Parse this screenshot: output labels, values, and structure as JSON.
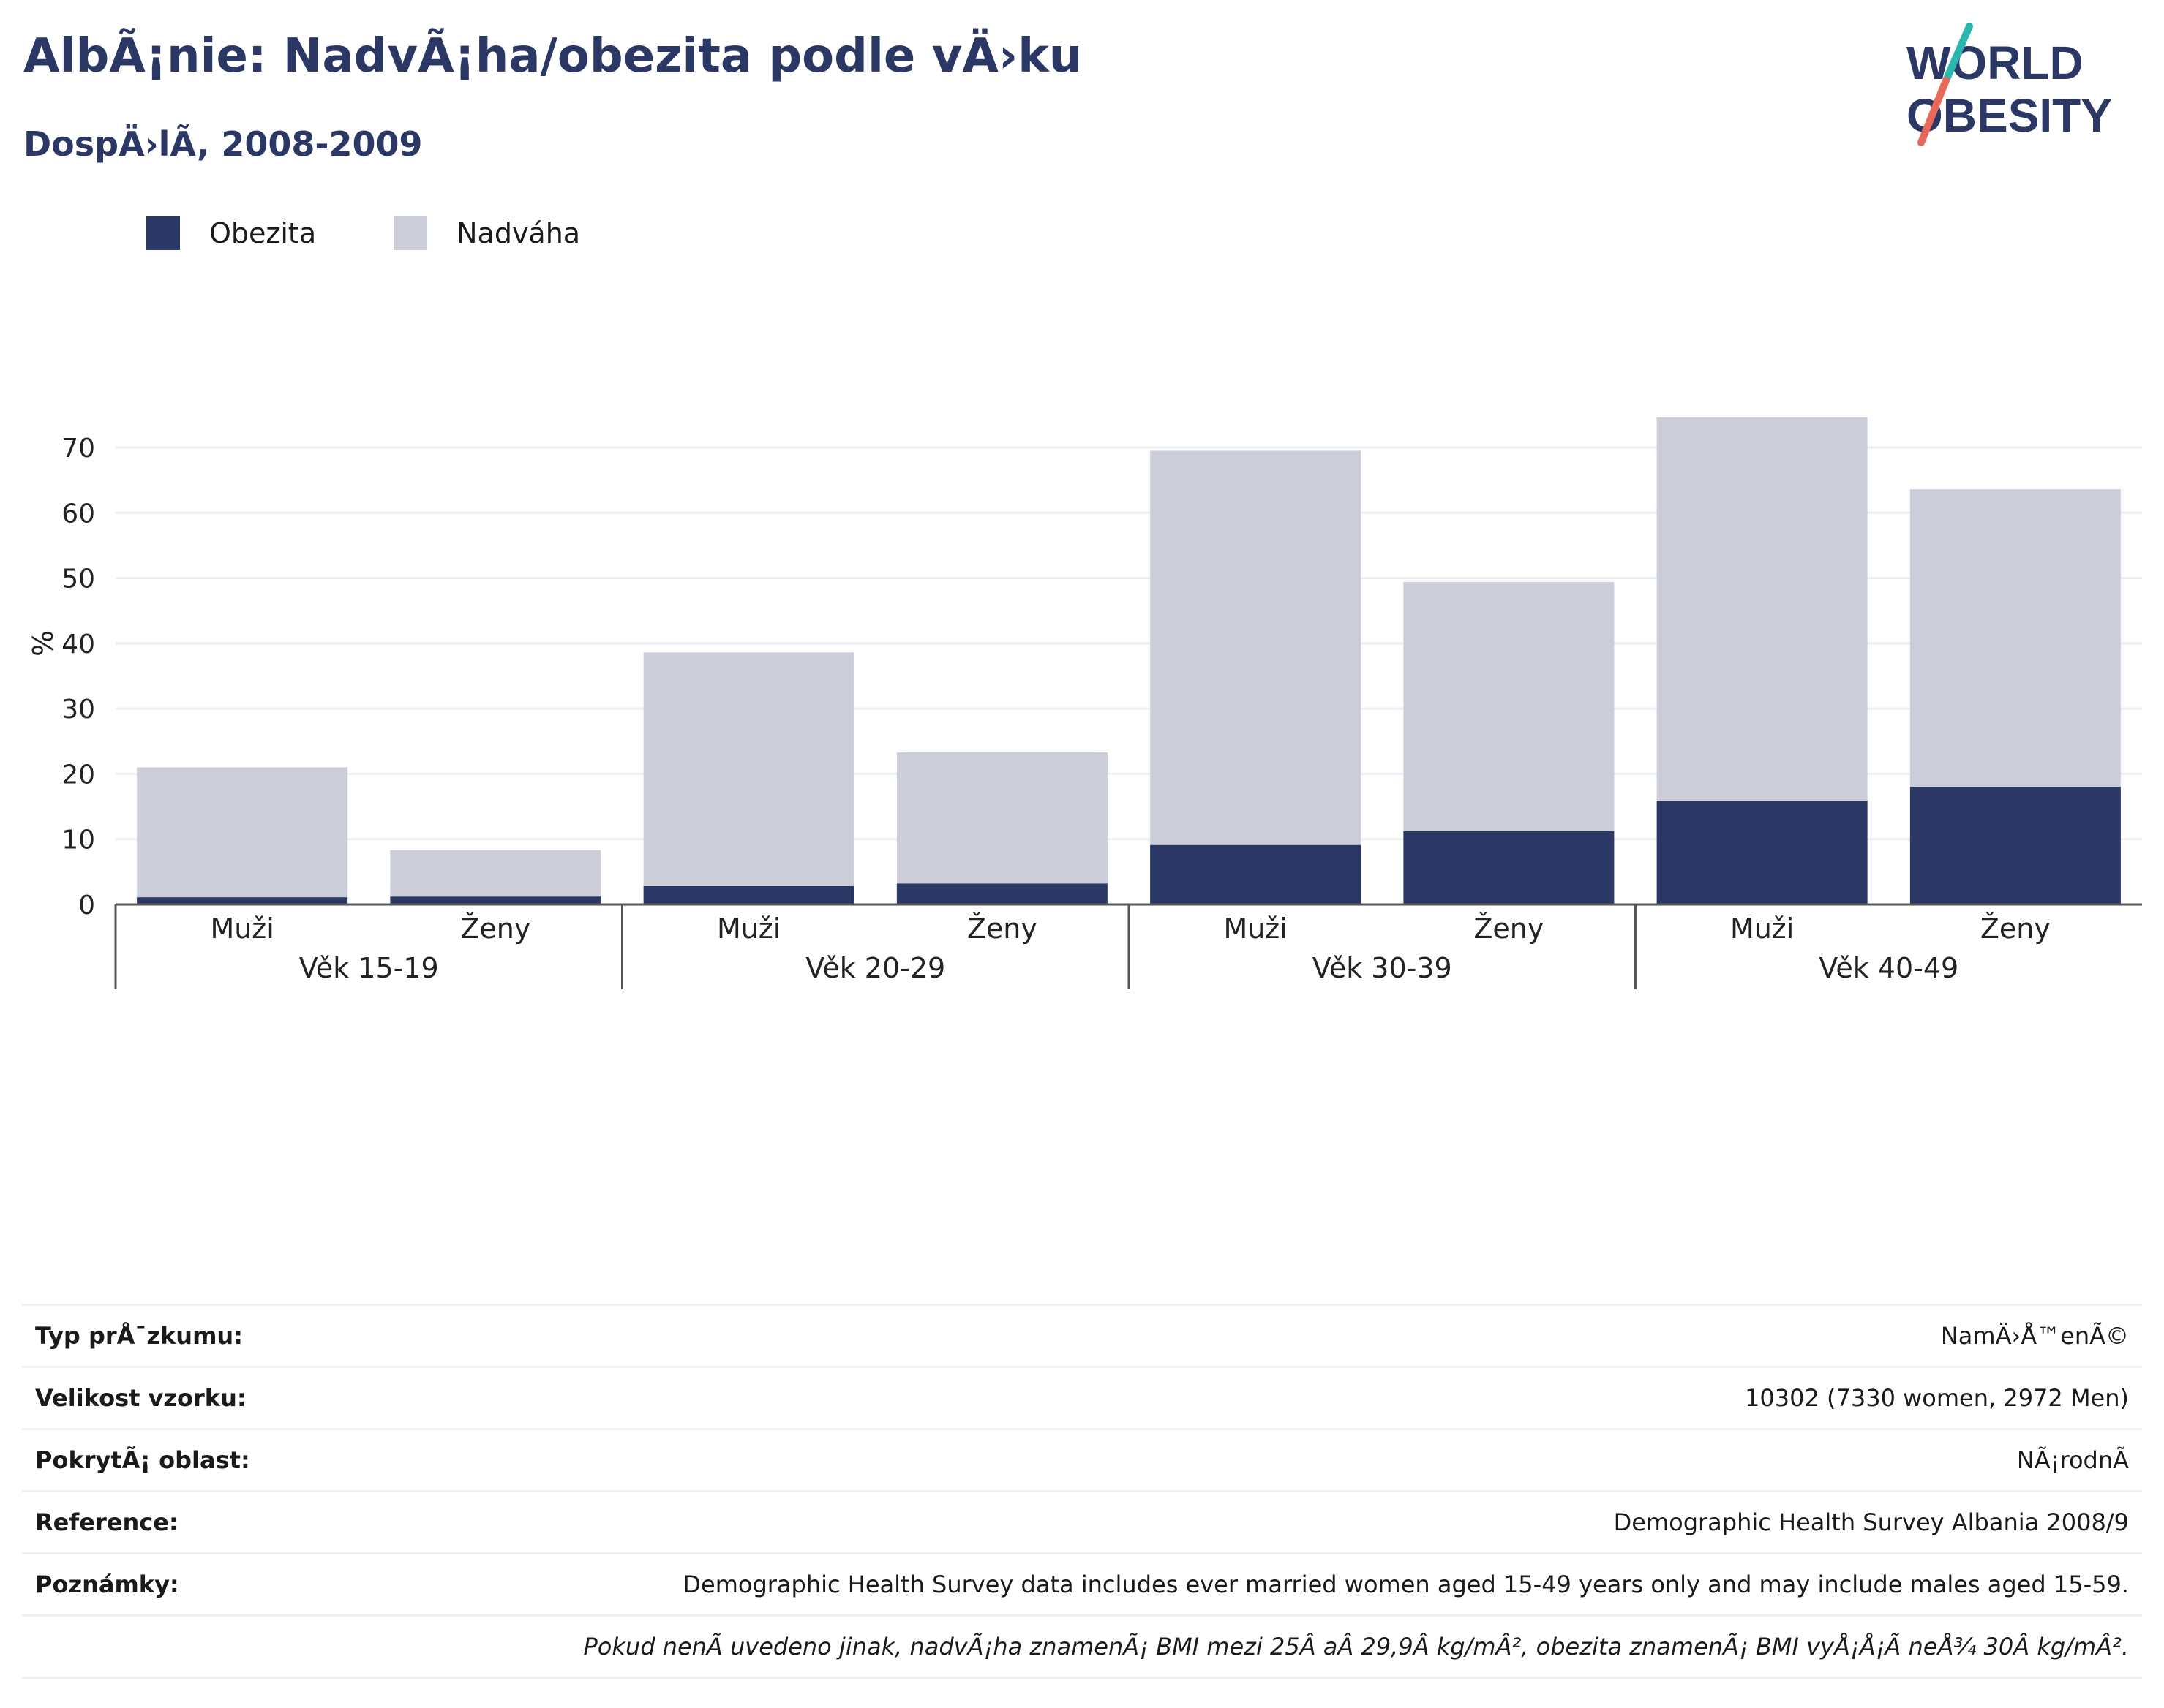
{
  "header": {
    "title": "AlbÃ¡nie: NadvÃ¡ha/obezita podle vÄ›ku",
    "subtitle": "DospÄ›lÃ­, 2008-2009"
  },
  "logo": {
    "line1": "WORLD",
    "line2": "OBESITY",
    "colors": {
      "text": "#2b3765",
      "slash_top": "#2ab7b0",
      "slash_bottom": "#e8695a"
    }
  },
  "legend": {
    "obesity_label": "Obezita",
    "overweight_label": "Nadváha"
  },
  "colors": {
    "obesity": "#2b3765",
    "overweight": "#cbcdd8"
  },
  "chart_data": {
    "type": "bar",
    "stacked": true,
    "ylabel": "%",
    "ylim": [
      0,
      80
    ],
    "yticks": [
      0,
      10,
      20,
      30,
      40,
      50,
      60,
      70
    ],
    "grid": true,
    "legend_position": "top-left",
    "groups": [
      "Věk 15-19",
      "Věk 20-29",
      "Věk 30-39",
      "Věk 40-49"
    ],
    "categories": [
      "Muži",
      "Ženy",
      "Muži",
      "Ženy",
      "Muži",
      "Ženy",
      "Muži",
      "Ženy"
    ],
    "series": [
      {
        "name": "Obezita",
        "values": [
          1.1,
          1.2,
          2.8,
          3.2,
          9.1,
          11.2,
          15.9,
          18.0
        ]
      },
      {
        "name": "Nadváha",
        "values": [
          19.9,
          7.1,
          35.8,
          20.1,
          60.4,
          38.2,
          58.7,
          45.6
        ]
      }
    ]
  },
  "info": {
    "rows": [
      {
        "label": "Typ prÅ¯zkumu:",
        "value": "NamÄ›Å™enÃ©"
      },
      {
        "label": "Velikost vzorku:",
        "value": "10302 (7330 women, 2972 Men)"
      },
      {
        "label": "PokrytÃ¡ oblast:",
        "value": "NÃ¡rodnÃ­"
      },
      {
        "label": "Reference:",
        "value": "Demographic Health Survey Albania 2008/9"
      },
      {
        "label": "Poznámky:",
        "value": "Demographic Health Survey data includes ever married women aged 15-49 years only and may include males aged 15-59."
      }
    ],
    "footnote": "Pokud nenÃ­ uvedeno jinak, nadvÃ¡ha znamenÃ¡ BMI mezi 25Â aÂ 29,9Â kg/mÂ², obezita znamenÃ¡ BMI vyÅ¡Å¡Ã­ neÅ¾ 30Â kg/mÂ²."
  }
}
